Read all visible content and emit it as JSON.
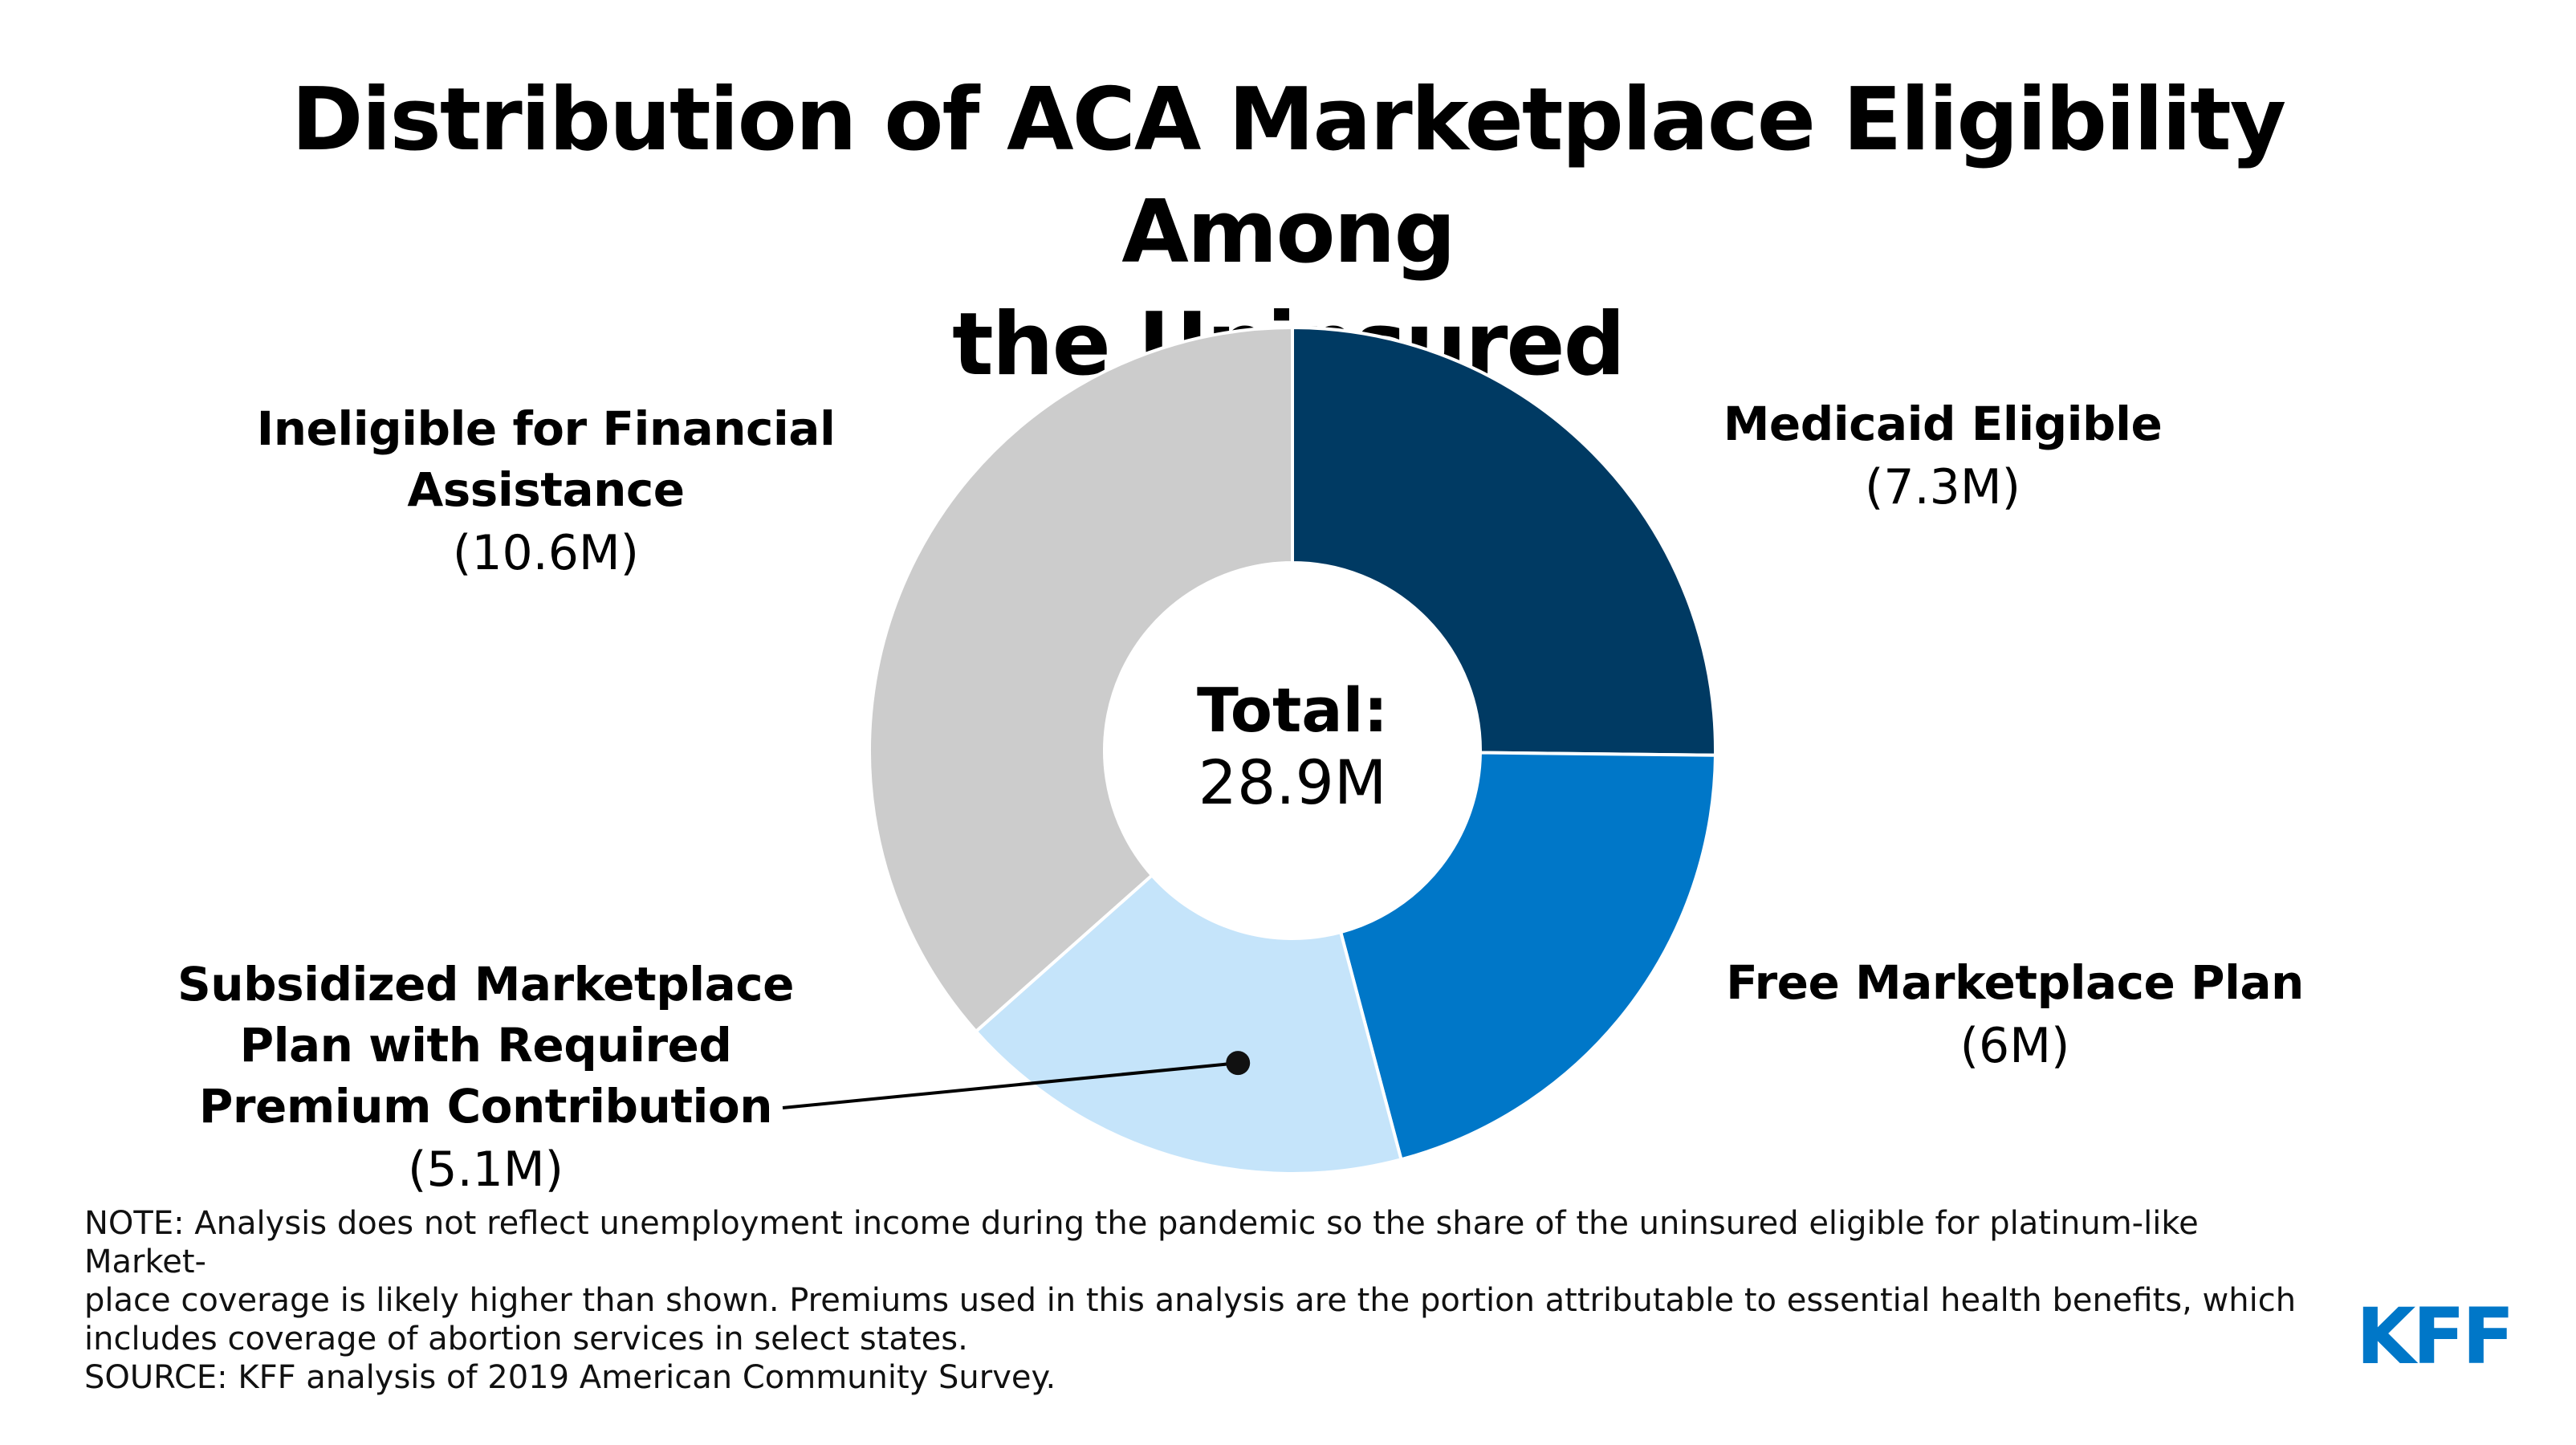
{
  "title": {
    "line1": "Distribution of ACA Marketplace Eligibility Among",
    "line2": "the Uninsured"
  },
  "chart_data": {
    "type": "pie",
    "style": "donut",
    "title": "Distribution of ACA Marketplace Eligibility Among the Uninsured",
    "units": "millions",
    "slices": [
      {
        "label": "Medicaid Eligible",
        "value": 7.3,
        "value_label": "(7.3M)",
        "color": "#003a63"
      },
      {
        "label": "Free Marketplace Plan",
        "value": 6.0,
        "value_label": "(6M)",
        "color": "#0077c8"
      },
      {
        "label": "Subsidized Marketplace Plan with Required Premium Contribution",
        "value": 5.1,
        "value_label": "(5.1M)",
        "color": "#c5e4fa"
      },
      {
        "label": "Ineligible for  Financial Assistance",
        "value": 10.6,
        "value_label": "(10.6M)",
        "color": "#cccccc"
      }
    ],
    "center": {
      "label": "Total:",
      "value": "28.9M"
    }
  },
  "labels": {
    "medicaid": {
      "name_lines": [
        "Medicaid Eligible"
      ],
      "value": "(7.3M)"
    },
    "free": {
      "name_lines": [
        "Free Marketplace Plan"
      ],
      "value": "(6M)"
    },
    "subsidized": {
      "name_lines": [
        "Subsidized Marketplace",
        "Plan with Required",
        "Premium Contribution"
      ],
      "value": "(5.1M)"
    },
    "ineligible": {
      "name_lines": [
        "Ineligible for  Financial",
        "Assistance"
      ],
      "value": "(10.6M)"
    }
  },
  "note": {
    "line1": "NOTE: Analysis does not reflect unemployment income during the pandemic so the share of the uninsured eligible for platinum-like Market-",
    "line2": "place coverage is likely higher than shown. Premiums used in this analysis are the portion attributable to essential health benefits, which",
    "line3": "includes coverage of abortion services in select states.",
    "source": "SOURCE: KFF analysis of 2019 American Community Survey."
  },
  "logo": {
    "text": "KFF",
    "color": "#0077c8"
  }
}
